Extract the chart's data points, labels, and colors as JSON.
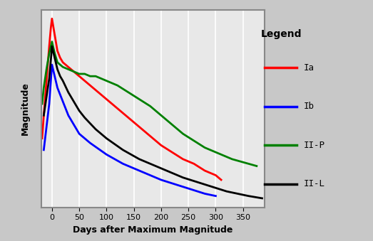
{
  "xlabel": "Days after Maximum Magnitude",
  "ylabel": "Magnitude",
  "xlim": [
    -20,
    390
  ],
  "background_color": "#c8c8c8",
  "plot_bg_color": "#e8e8e8",
  "grid_color": "#ffffff",
  "legend_title": "Legend",
  "series": [
    {
      "label": "Ia",
      "color": "#ff0000",
      "x": [
        -18,
        -15,
        -10,
        -5,
        -2,
        0,
        5,
        10,
        15,
        20,
        25,
        30,
        40,
        50,
        60,
        80,
        100,
        120,
        140,
        160,
        180,
        200,
        220,
        240,
        260,
        280,
        300,
        310
      ],
      "y": [
        11.0,
        10.0,
        8.5,
        7.0,
        6.2,
        5.8,
        6.5,
        7.2,
        7.5,
        7.7,
        7.8,
        7.9,
        8.1,
        8.3,
        8.5,
        8.9,
        9.3,
        9.7,
        10.1,
        10.5,
        10.9,
        11.3,
        11.6,
        11.9,
        12.1,
        12.4,
        12.6,
        12.8
      ]
    },
    {
      "label": "Ib",
      "color": "#0000ff",
      "x": [
        -15,
        -10,
        -5,
        -2,
        0,
        5,
        10,
        15,
        20,
        25,
        30,
        40,
        50,
        70,
        100,
        130,
        160,
        200,
        240,
        280,
        300
      ],
      "y": [
        11.5,
        10.5,
        9.5,
        8.5,
        7.8,
        8.3,
        8.8,
        9.1,
        9.4,
        9.7,
        10.0,
        10.4,
        10.8,
        11.2,
        11.7,
        12.1,
        12.4,
        12.8,
        13.1,
        13.4,
        13.5
      ]
    },
    {
      "label": "II-P",
      "color": "#008000",
      "x": [
        -18,
        -15,
        -10,
        -5,
        0,
        5,
        10,
        20,
        30,
        40,
        50,
        60,
        70,
        80,
        90,
        100,
        110,
        120,
        140,
        160,
        180,
        200,
        220,
        240,
        260,
        280,
        300,
        330,
        360,
        375
      ],
      "y": [
        9.5,
        8.8,
        8.0,
        7.3,
        6.8,
        7.3,
        7.7,
        7.9,
        8.0,
        8.1,
        8.2,
        8.2,
        8.3,
        8.3,
        8.4,
        8.5,
        8.6,
        8.7,
        9.0,
        9.3,
        9.6,
        10.0,
        10.4,
        10.8,
        11.1,
        11.4,
        11.6,
        11.9,
        12.1,
        12.2
      ]
    },
    {
      "label": "II-L",
      "color": "#000000",
      "x": [
        -15,
        -10,
        -5,
        -2,
        0,
        5,
        10,
        15,
        20,
        30,
        40,
        50,
        60,
        80,
        100,
        130,
        160,
        200,
        240,
        280,
        320,
        360,
        385
      ],
      "y": [
        10.0,
        9.2,
        8.4,
        7.6,
        7.0,
        7.5,
        8.0,
        8.3,
        8.5,
        9.0,
        9.4,
        9.8,
        10.1,
        10.6,
        11.0,
        11.5,
        11.9,
        12.3,
        12.7,
        13.0,
        13.3,
        13.5,
        13.6
      ]
    }
  ]
}
